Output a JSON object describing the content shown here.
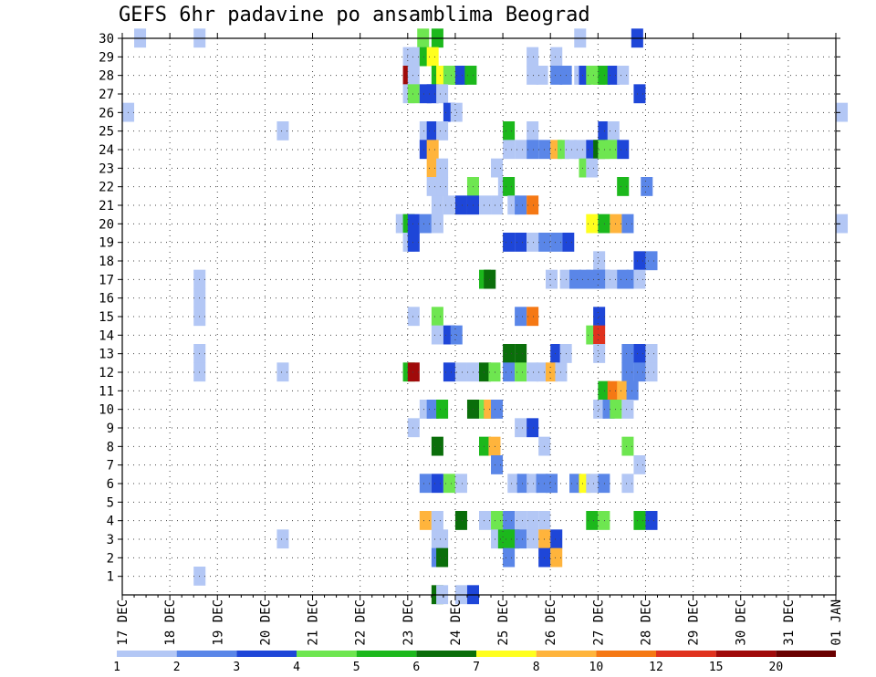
{
  "title": "GEFS 6hr padavine po ansamblima Beograd",
  "chart_data": {
    "type": "heatmap",
    "title": "GEFS 6hr padavine po ansamblima Beograd",
    "ylabel": "",
    "xlabel": "",
    "y_ticks": [
      "1",
      "2",
      "3",
      "4",
      "5",
      "6",
      "7",
      "8",
      "9",
      "10",
      "11",
      "12",
      "13",
      "14",
      "15",
      "16",
      "17",
      "18",
      "19",
      "20",
      "21",
      "22",
      "23",
      "24",
      "25",
      "26",
      "27",
      "28",
      "29",
      "30"
    ],
    "x_ticks": [
      "17 DEC",
      "18 DEC",
      "19 DEC",
      "20 DEC",
      "21 DEC",
      "22 DEC",
      "23 DEC",
      "24 DEC",
      "25 DEC",
      "26 DEC",
      "27 DEC",
      "28 DEC",
      "29 DEC",
      "30 DEC",
      "31 DEC",
      "01 JAN"
    ],
    "x_range_days": [
      0,
      15
    ],
    "y_range": [
      0,
      30
    ],
    "grid": true,
    "legend": {
      "placement": "bottom",
      "colors": [
        "#b3c7f5",
        "#5a86e8",
        "#1e46d8",
        "#6ee650",
        "#1cb81c",
        "#0a6e0a",
        "#ffff1e",
        "#ffb43c",
        "#f57814",
        "#e0321e",
        "#a00a0a",
        "#6a0000"
      ],
      "labels": [
        "1",
        "2",
        "3",
        "4",
        "5",
        "6",
        "7",
        "8",
        "10",
        "12",
        "15",
        "20"
      ]
    },
    "cells": [
      [
        0.25,
        30,
        0
      ],
      [
        1.5,
        30,
        0
      ],
      [
        6.2,
        30,
        3
      ],
      [
        6.5,
        30,
        4
      ],
      [
        9.5,
        30,
        0
      ],
      [
        10.7,
        30,
        2
      ],
      [
        5.9,
        29,
        0
      ],
      [
        6.1,
        29,
        0
      ],
      [
        6.25,
        29,
        4
      ],
      [
        6.4,
        29,
        6
      ],
      [
        8.5,
        29,
        0
      ],
      [
        9,
        29,
        0
      ],
      [
        5.9,
        28,
        10
      ],
      [
        6,
        28,
        0
      ],
      [
        6.5,
        28,
        4
      ],
      [
        6.6,
        28,
        6
      ],
      [
        6.75,
        28,
        3
      ],
      [
        6.9,
        28,
        3
      ],
      [
        7,
        28,
        2
      ],
      [
        7.2,
        28,
        4
      ],
      [
        8.5,
        28,
        0
      ],
      [
        8.7,
        28,
        0
      ],
      [
        9,
        28,
        1
      ],
      [
        9.2,
        28,
        1
      ],
      [
        9.5,
        28,
        0
      ],
      [
        9.6,
        28,
        2
      ],
      [
        9.75,
        28,
        3
      ],
      [
        9.9,
        28,
        3
      ],
      [
        10,
        28,
        4
      ],
      [
        10.2,
        28,
        2
      ],
      [
        10.4,
        28,
        0
      ],
      [
        5.9,
        27,
        0
      ],
      [
        6,
        27,
        3
      ],
      [
        6.25,
        27,
        2
      ],
      [
        6.4,
        27,
        2
      ],
      [
        6.6,
        27,
        0
      ],
      [
        10.75,
        27,
        2
      ],
      [
        0,
        26,
        0
      ],
      [
        6.75,
        26,
        2
      ],
      [
        6.9,
        26,
        0
      ],
      [
        15,
        26,
        0
      ],
      [
        3.25,
        25,
        0
      ],
      [
        6.25,
        25,
        0
      ],
      [
        6.4,
        25,
        2
      ],
      [
        6.6,
        25,
        0
      ],
      [
        8,
        25,
        4
      ],
      [
        8.5,
        25,
        0
      ],
      [
        10,
        25,
        2
      ],
      [
        10.2,
        25,
        0
      ],
      [
        6.25,
        24,
        2
      ],
      [
        6.4,
        24,
        7
      ],
      [
        8,
        24,
        0
      ],
      [
        8.25,
        24,
        0
      ],
      [
        8.5,
        24,
        1
      ],
      [
        8.75,
        24,
        1
      ],
      [
        9,
        24,
        7
      ],
      [
        9.15,
        24,
        3
      ],
      [
        9.3,
        24,
        0
      ],
      [
        9.5,
        24,
        0
      ],
      [
        9.75,
        24,
        2
      ],
      [
        9.9,
        24,
        5
      ],
      [
        10,
        24,
        3
      ],
      [
        10.15,
        24,
        3
      ],
      [
        10.4,
        24,
        2
      ],
      [
        6.4,
        23,
        7
      ],
      [
        6.6,
        23,
        0
      ],
      [
        7.75,
        23,
        0
      ],
      [
        9.6,
        23,
        3
      ],
      [
        9.75,
        23,
        0
      ],
      [
        6.4,
        22,
        0
      ],
      [
        6.6,
        22,
        0
      ],
      [
        7.25,
        22,
        3
      ],
      [
        7.9,
        22,
        0
      ],
      [
        8,
        22,
        4
      ],
      [
        10.4,
        22,
        4
      ],
      [
        10.9,
        22,
        1
      ],
      [
        6.5,
        21,
        0
      ],
      [
        6.75,
        21,
        0
      ],
      [
        7,
        21,
        2
      ],
      [
        7.25,
        21,
        2
      ],
      [
        7.5,
        21,
        0
      ],
      [
        7.75,
        21,
        0
      ],
      [
        8.1,
        21,
        0
      ],
      [
        8.25,
        21,
        1
      ],
      [
        8.5,
        21,
        8
      ],
      [
        5.75,
        20,
        0
      ],
      [
        5.9,
        20,
        4
      ],
      [
        6,
        20,
        2
      ],
      [
        6.25,
        20,
        1
      ],
      [
        6.5,
        20,
        0
      ],
      [
        9.75,
        20,
        6
      ],
      [
        10,
        20,
        4
      ],
      [
        10.25,
        20,
        7
      ],
      [
        10.5,
        20,
        1
      ],
      [
        15,
        20,
        0
      ],
      [
        5.9,
        19,
        0
      ],
      [
        6,
        19,
        2
      ],
      [
        8,
        19,
        2
      ],
      [
        8.25,
        19,
        2
      ],
      [
        8.5,
        19,
        0
      ],
      [
        8.75,
        19,
        1
      ],
      [
        9,
        19,
        1
      ],
      [
        9.25,
        19,
        2
      ],
      [
        9.9,
        18,
        0
      ],
      [
        10.75,
        18,
        2
      ],
      [
        11,
        18,
        1
      ],
      [
        8.9,
        17,
        0
      ],
      [
        9.2,
        17,
        0
      ],
      [
        9.4,
        17,
        1
      ],
      [
        9.6,
        17,
        1
      ],
      [
        9.75,
        17,
        1
      ],
      [
        9.9,
        17,
        1
      ],
      [
        10,
        17,
        1
      ],
      [
        10.15,
        17,
        0
      ],
      [
        10.4,
        17,
        1
      ],
      [
        10.6,
        17,
        1
      ],
      [
        10.75,
        17,
        0
      ],
      [
        7.5,
        17,
        4
      ],
      [
        7.6,
        17,
        5
      ],
      [
        1.5,
        17,
        0
      ],
      [
        1.5,
        16,
        0
      ],
      [
        1.5,
        15,
        0
      ],
      [
        6,
        15,
        0
      ],
      [
        6.5,
        15,
        3
      ],
      [
        8.25,
        15,
        1
      ],
      [
        8.5,
        15,
        8
      ],
      [
        9.9,
        15,
        2
      ],
      [
        6.5,
        14,
        0
      ],
      [
        6.75,
        14,
        2
      ],
      [
        6.9,
        14,
        1
      ],
      [
        9.75,
        14,
        3
      ],
      [
        9.9,
        14,
        9
      ],
      [
        1.5,
        13,
        0
      ],
      [
        8,
        13,
        5
      ],
      [
        8.25,
        13,
        5
      ],
      [
        9,
        13,
        2
      ],
      [
        9.2,
        13,
        0
      ],
      [
        9.9,
        13,
        0
      ],
      [
        10.5,
        13,
        1
      ],
      [
        10.75,
        13,
        2
      ],
      [
        11,
        13,
        0
      ],
      [
        1.5,
        12,
        0
      ],
      [
        3.25,
        12,
        0
      ],
      [
        5.9,
        12,
        4
      ],
      [
        6,
        12,
        10
      ],
      [
        6.75,
        12,
        2
      ],
      [
        7,
        12,
        0
      ],
      [
        7.25,
        12,
        0
      ],
      [
        7.5,
        12,
        5
      ],
      [
        7.7,
        12,
        3
      ],
      [
        8,
        12,
        1
      ],
      [
        8.25,
        12,
        3
      ],
      [
        8.5,
        12,
        0
      ],
      [
        8.7,
        12,
        0
      ],
      [
        8.9,
        12,
        7
      ],
      [
        9.1,
        12,
        0
      ],
      [
        10.5,
        12,
        1
      ],
      [
        10.75,
        12,
        1
      ],
      [
        11,
        12,
        0
      ],
      [
        10,
        11,
        4
      ],
      [
        10.2,
        11,
        8
      ],
      [
        10.4,
        11,
        7
      ],
      [
        10.6,
        11,
        1
      ],
      [
        6.25,
        10,
        0
      ],
      [
        6.4,
        10,
        1
      ],
      [
        6.6,
        10,
        4
      ],
      [
        7.25,
        10,
        5
      ],
      [
        7.5,
        10,
        3
      ],
      [
        7.6,
        10,
        7
      ],
      [
        7.75,
        10,
        1
      ],
      [
        9.9,
        10,
        0
      ],
      [
        10.1,
        10,
        1
      ],
      [
        10.25,
        10,
        3
      ],
      [
        10.5,
        10,
        0
      ],
      [
        6,
        9,
        0
      ],
      [
        8.25,
        9,
        0
      ],
      [
        8.5,
        9,
        2
      ],
      [
        6.5,
        8,
        5
      ],
      [
        7.5,
        8,
        4
      ],
      [
        7.7,
        8,
        7
      ],
      [
        8.75,
        8,
        0
      ],
      [
        10.5,
        8,
        3
      ],
      [
        7.75,
        7,
        1
      ],
      [
        10.75,
        7,
        0
      ],
      [
        6.25,
        6,
        1
      ],
      [
        6.5,
        6,
        2
      ],
      [
        6.75,
        6,
        3
      ],
      [
        7,
        6,
        0
      ],
      [
        8.1,
        6,
        0
      ],
      [
        8.3,
        6,
        1
      ],
      [
        8.5,
        6,
        0
      ],
      [
        8.7,
        6,
        1
      ],
      [
        8.9,
        6,
        1
      ],
      [
        9.4,
        6,
        1
      ],
      [
        9.6,
        6,
        6
      ],
      [
        9.75,
        6,
        0
      ],
      [
        10,
        6,
        1
      ],
      [
        10.5,
        6,
        0
      ],
      [
        6.25,
        4,
        7
      ],
      [
        6.5,
        4,
        0
      ],
      [
        7,
        4,
        5
      ],
      [
        7.5,
        4,
        0
      ],
      [
        7.75,
        4,
        3
      ],
      [
        8,
        4,
        1
      ],
      [
        8.25,
        4,
        0
      ],
      [
        8.5,
        4,
        0
      ],
      [
        8.75,
        4,
        0
      ],
      [
        9.75,
        4,
        4
      ],
      [
        10,
        4,
        3
      ],
      [
        10.75,
        4,
        4
      ],
      [
        11,
        4,
        2
      ],
      [
        3.25,
        3,
        0
      ],
      [
        6.5,
        3,
        0
      ],
      [
        6.6,
        3,
        0
      ],
      [
        7.75,
        3,
        0
      ],
      [
        7.9,
        3,
        4
      ],
      [
        8.1,
        3,
        4
      ],
      [
        8.25,
        3,
        1
      ],
      [
        8.5,
        3,
        0
      ],
      [
        8.75,
        3,
        7
      ],
      [
        9,
        3,
        2
      ],
      [
        6.5,
        2,
        1
      ],
      [
        6.6,
        2,
        5
      ],
      [
        8,
        2,
        1
      ],
      [
        8.75,
        2,
        2
      ],
      [
        9,
        2,
        7
      ],
      [
        1.5,
        1,
        0
      ],
      [
        6.5,
        0,
        5
      ],
      [
        6.6,
        0,
        0
      ],
      [
        7,
        0,
        0
      ],
      [
        7.25,
        0,
        2
      ]
    ]
  }
}
